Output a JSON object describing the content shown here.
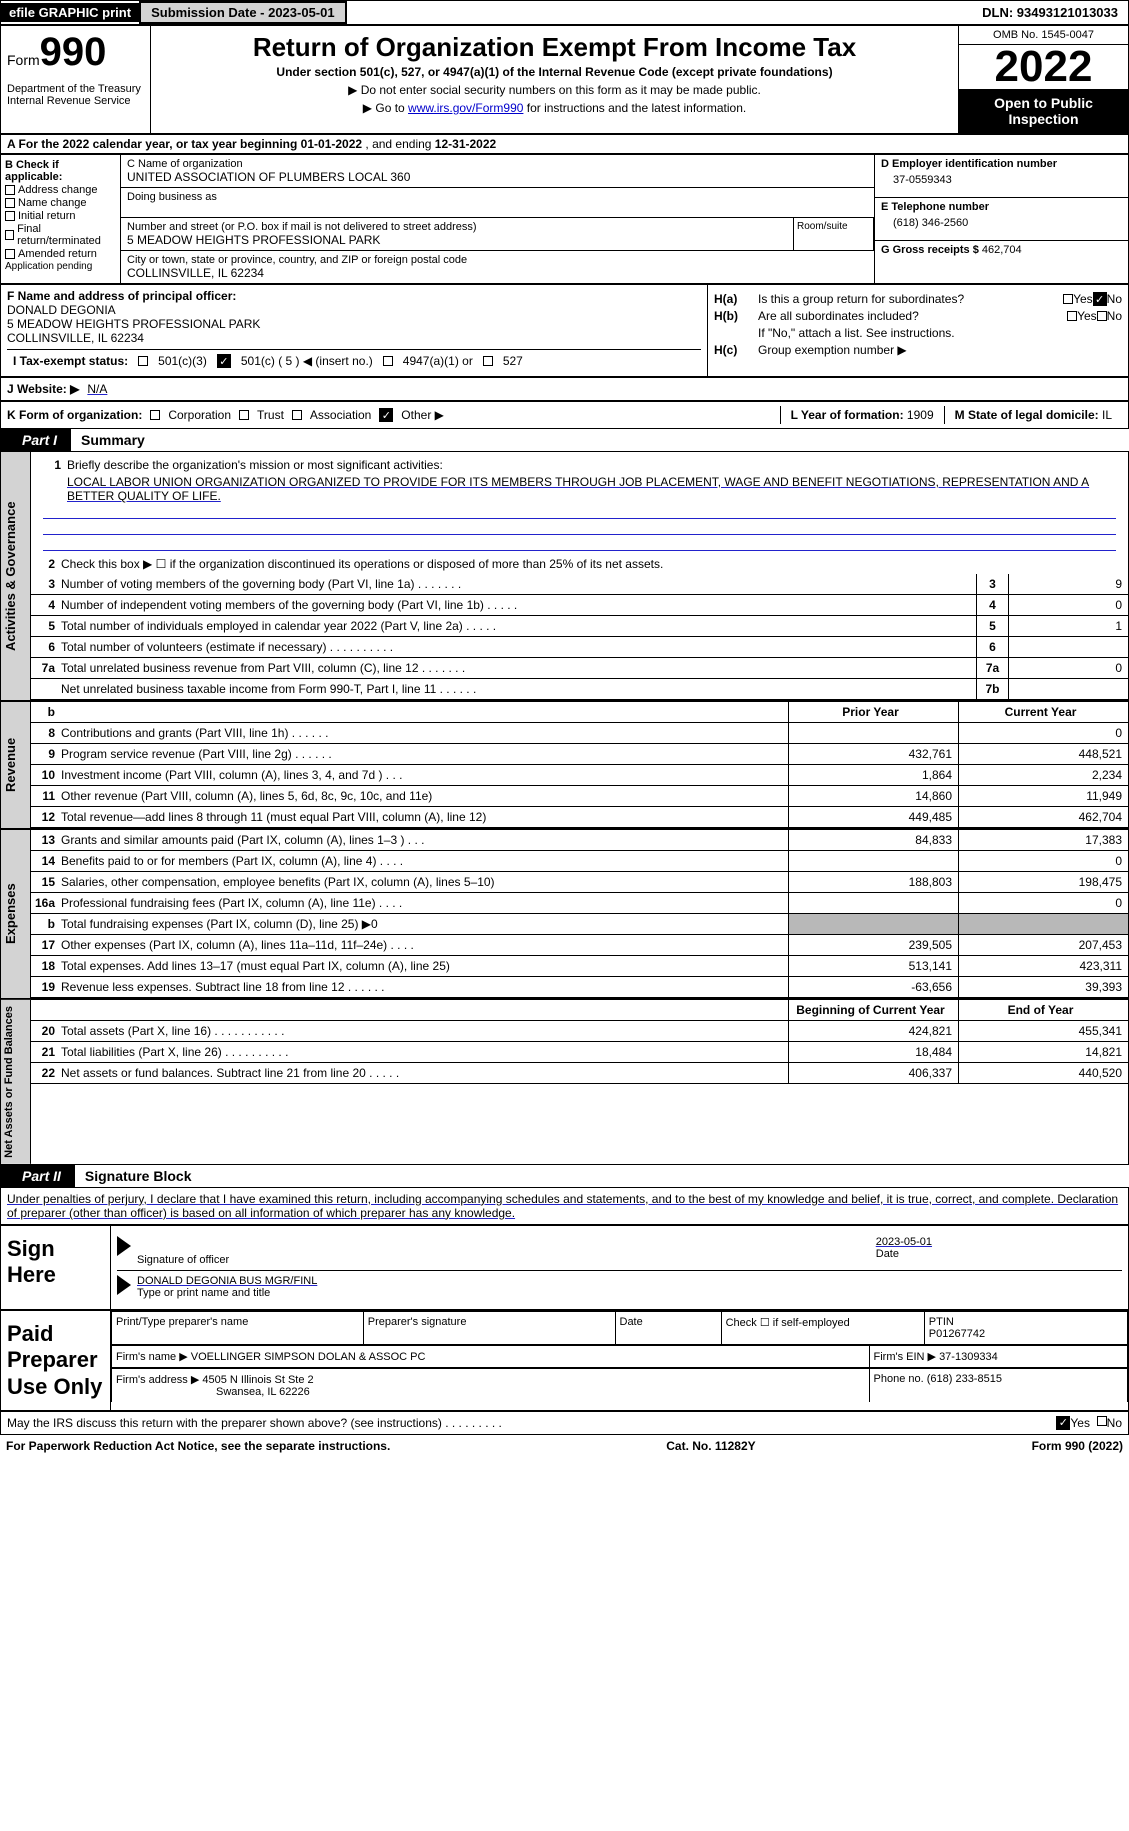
{
  "top": {
    "efile": "efile GRAPHIC print",
    "sub_date_label": "Submission Date - 2023-05-01",
    "dln": "DLN: 93493121013033"
  },
  "header": {
    "form_word": "Form",
    "form_num": "990",
    "dept": "Department of the Treasury\nInternal Revenue Service",
    "title": "Return of Organization Exempt From Income Tax",
    "subtitle": "Under section 501(c), 527, or 4947(a)(1) of the Internal Revenue Code (except private foundations)",
    "line1": "▶ Do not enter social security numbers on this form as it may be made public.",
    "line2_pre": "▶ Go to ",
    "line2_link": "www.irs.gov/Form990",
    "line2_post": " for instructions and the latest information.",
    "omb": "OMB No. 1545-0047",
    "year": "2022",
    "inspection": "Open to Public Inspection"
  },
  "rowA": {
    "label": "A For the 2022 calendar year, or tax year beginning ",
    "begin": "01-01-2022",
    "mid": "   , and ending ",
    "end": "12-31-2022"
  },
  "colB": {
    "hdr": "B Check if applicable:",
    "o1": "Address change",
    "o2": "Name change",
    "o3": "Initial return",
    "o4": "Final return/terminated",
    "o5": "Amended return",
    "o6": "Application pending"
  },
  "colC": {
    "name_lbl": "C Name of organization",
    "name_val": "UNITED ASSOCIATION OF PLUMBERS LOCAL 360",
    "dba_lbl": "Doing business as",
    "addr_lbl": "Number and street (or P.O. box if mail is not delivered to street address)",
    "addr_val": "5 MEADOW HEIGHTS PROFESSIONAL PARK",
    "room_lbl": "Room/suite",
    "city_lbl": "City or town, state or province, country, and ZIP or foreign postal code",
    "city_val": "COLLINSVILLE, IL  62234"
  },
  "colD": {
    "ein_lbl": "D Employer identification number",
    "ein_val": "37-0559343",
    "tel_lbl": "E Telephone number",
    "tel_val": "(618) 346-2560",
    "gross_lbl": "G Gross receipts $ ",
    "gross_val": "462,704"
  },
  "colF": {
    "lbl": "F Name and address of principal officer:",
    "name": "DONALD DEGONIA",
    "addr1": "5 MEADOW HEIGHTS PROFESSIONAL PARK",
    "addr2": "COLLINSVILLE, IL  62234"
  },
  "colH": {
    "a_lbl": "H(a)",
    "a_txt": "Is this a group return for subordinates?",
    "b_lbl": "H(b)",
    "b_txt": "Are all subordinates included?",
    "b_note": "If \"No,\" attach a list. See instructions.",
    "c_lbl": "H(c)",
    "c_txt": "Group exemption number ▶",
    "yes": "Yes",
    "no": "No"
  },
  "tax": {
    "i_lbl": "I    Tax-exempt status:",
    "c3": "501(c)(3)",
    "c5": "501(c) ( 5 ) ◀ (insert no.)",
    "c4947": "4947(a)(1) or",
    "c527": "527"
  },
  "rowJ": {
    "lbl": "J    Website: ▶",
    "val": "N/A"
  },
  "rowK": {
    "lbl": "K Form of organization:",
    "corp": "Corporation",
    "trust": "Trust",
    "assoc": "Association",
    "other": "Other ▶",
    "l_lbl": "L Year of formation: ",
    "l_val": "1909",
    "m_lbl": "M State of legal domicile: ",
    "m_val": "IL"
  },
  "part1": {
    "num": "Part I",
    "title": "Summary"
  },
  "sideTabs": {
    "t1": "Activities & Governance",
    "t2": "Revenue",
    "t3": "Expenses",
    "t4": "Net Assets or Fund Balances"
  },
  "line1": {
    "lbl": "Briefly describe the organization's mission or most significant activities:",
    "txt": "LOCAL LABOR UNION ORGANIZATION ORGANIZED TO PROVIDE FOR ITS MEMBERS THROUGH JOB PLACEMENT, WAGE AND BENEFIT NEGOTIATIONS, REPRESENTATION AND A BETTER QUALITY OF LIFE."
  },
  "line2": "Check this box ▶ ☐  if the organization discontinued its operations or disposed of more than 25% of its net assets.",
  "rows_ag": [
    {
      "n": "3",
      "t": "Number of voting members of the governing body (Part VI, line 1a)   .    .    .    .    .    .    .",
      "b": "3",
      "v": "9"
    },
    {
      "n": "4",
      "t": "Number of independent voting members of the governing body (Part VI, line 1b)   .    .    .    .    .",
      "b": "4",
      "v": "0"
    },
    {
      "n": "5",
      "t": "Total number of individuals employed in calendar year 2022 (Part V, line 2a)   .    .    .    .    .",
      "b": "5",
      "v": "1"
    },
    {
      "n": "6",
      "t": "Total number of volunteers (estimate if necessary)    .    .    .    .    .    .    .    .    .    .",
      "b": "6",
      "v": ""
    },
    {
      "n": "7a",
      "t": "Total unrelated business revenue from Part VIII, column (C), line 12   .    .    .    .    .    .    .",
      "b": "7a",
      "v": "0"
    },
    {
      "n": "",
      "t": "Net unrelated business taxable income from Form 990-T, Part I, line 11   .    .    .    .    .    .",
      "b": "7b",
      "v": ""
    }
  ],
  "colHdrs": {
    "py": "Prior Year",
    "cy": "Current Year",
    "bcy": "Beginning of Current Year",
    "eoy": "End of Year"
  },
  "rows_rev": [
    {
      "n": "8",
      "t": "Contributions and grants (Part VIII, line 1h)   .    .    .    .    .    .",
      "py": "",
      "cy": "0"
    },
    {
      "n": "9",
      "t": "Program service revenue (Part VIII, line 2g)   .    .    .    .    .    .",
      "py": "432,761",
      "cy": "448,521"
    },
    {
      "n": "10",
      "t": "Investment income (Part VIII, column (A), lines 3, 4, and 7d )   .    .    .",
      "py": "1,864",
      "cy": "2,234"
    },
    {
      "n": "11",
      "t": "Other revenue (Part VIII, column (A), lines 5, 6d, 8c, 9c, 10c, and 11e)",
      "py": "14,860",
      "cy": "11,949"
    },
    {
      "n": "12",
      "t": "Total revenue—add lines 8 through 11 (must equal Part VIII, column (A), line 12)",
      "py": "449,485",
      "cy": "462,704"
    }
  ],
  "rows_exp": [
    {
      "n": "13",
      "t": "Grants and similar amounts paid (Part IX, column (A), lines 1–3 )   .    .    .",
      "py": "84,833",
      "cy": "17,383"
    },
    {
      "n": "14",
      "t": "Benefits paid to or for members (Part IX, column (A), line 4)   .    .    .    .",
      "py": "",
      "cy": "0"
    },
    {
      "n": "15",
      "t": "Salaries, other compensation, employee benefits (Part IX, column (A), lines 5–10)",
      "py": "188,803",
      "cy": "198,475"
    },
    {
      "n": "16a",
      "t": "Professional fundraising fees (Part IX, column (A), line 11e)    .    .    .    .",
      "py": "",
      "cy": "0"
    },
    {
      "n": "b",
      "t": "Total fundraising expenses (Part IX, column (D), line 25) ▶0",
      "py": "SHADE",
      "cy": "SHADE"
    },
    {
      "n": "17",
      "t": "Other expenses (Part IX, column (A), lines 11a–11d, 11f–24e)   .    .    .    .",
      "py": "239,505",
      "cy": "207,453"
    },
    {
      "n": "18",
      "t": "Total expenses. Add lines 13–17 (must equal Part IX, column (A), line 25)",
      "py": "513,141",
      "cy": "423,311"
    },
    {
      "n": "19",
      "t": "Revenue less expenses. Subtract line 18 from line 12   .    .    .    .    .    .",
      "py": "-63,656",
      "cy": "39,393"
    }
  ],
  "rows_net": [
    {
      "n": "20",
      "t": "Total assets (Part X, line 16)   .    .    .    .    .    .    .    .    .    .    .",
      "py": "424,821",
      "cy": "455,341"
    },
    {
      "n": "21",
      "t": "Total liabilities (Part X, line 26)    .    .    .    .    .    .    .    .    .    .",
      "py": "18,484",
      "cy": "14,821"
    },
    {
      "n": "22",
      "t": "Net assets or fund balances. Subtract line 21 from line 20   .    .    .    .    .",
      "py": "406,337",
      "cy": "440,520"
    }
  ],
  "part2": {
    "num": "Part II",
    "title": "Signature Block"
  },
  "decl": "Under penalties of perjury, I declare that I have examined this return, including accompanying schedules and statements, and to the best of my knowledge and belief, it is true, correct, and complete. Declaration of preparer (other than officer) is based on all information of which preparer has any knowledge.",
  "sign": {
    "hdr": "Sign Here",
    "sig_lbl": "Signature of officer",
    "date_lbl": "Date",
    "date_val": "2023-05-01",
    "name_lbl": "Type or print name and title",
    "name_val": "DONALD DEGONIA  BUS MGR/FINL"
  },
  "prep": {
    "hdr": "Paid Preparer Use Only",
    "c1": "Print/Type preparer's name",
    "c2": "Preparer's signature",
    "c3": "Date",
    "c4a": "Check ☐ if self-employed",
    "c5_lbl": "PTIN",
    "c5_val": "P01267742",
    "firm_lbl": "Firm's name       ▶ ",
    "firm_val": "VOELLINGER SIMPSON DOLAN & ASSOC PC",
    "ein_lbl": "Firm's EIN ▶ ",
    "ein_val": "37-1309334",
    "addr_lbl": "Firm's address  ▶ ",
    "addr_val1": "4505 N Illinois St Ste 2",
    "addr_val2": "Swansea, IL  62226",
    "phone_lbl": "Phone no. ",
    "phone_val": "(618) 233-8515"
  },
  "discuss": {
    "txt": "May the IRS discuss this return with the preparer shown above? (see instructions)    .    .    .    .    .    .    .    .    .",
    "yes": "Yes",
    "no": "No"
  },
  "footer": {
    "left": "For Paperwork Reduction Act Notice, see the separate instructions.",
    "mid": "Cat. No. 11282Y",
    "right": "Form 990 (2022)"
  }
}
